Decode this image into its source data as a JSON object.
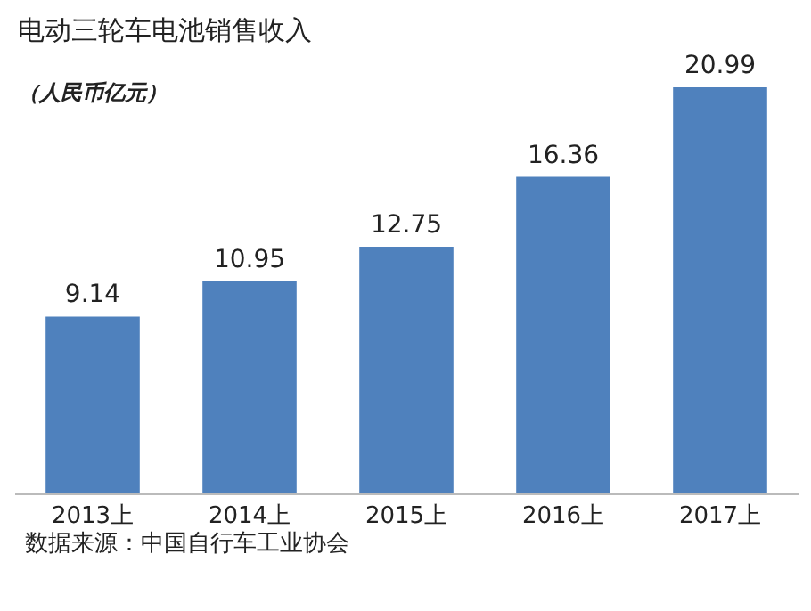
{
  "chart_data": {
    "type": "bar",
    "title": "电动三轮车电池销售收入",
    "subtitle": "（人民币亿元）",
    "categories": [
      "2013上",
      "2014上",
      "2015上",
      "2016上",
      "2017上"
    ],
    "values": [
      9.14,
      10.95,
      12.75,
      16.36,
      20.99
    ],
    "color": "#4f81bd",
    "data_labels": true,
    "annotations": [
      "数据来源：中国自行车工业协会"
    ]
  }
}
